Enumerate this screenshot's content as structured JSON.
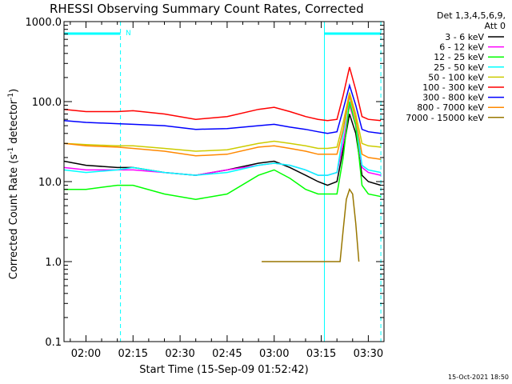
{
  "chart_data": {
    "type": "line",
    "title": "RHESSI Observing Summary Count Rates, Corrected",
    "xlabel": "Start Time (15-Sep-09 01:52:42)",
    "ylabel_parts": [
      "Corrected Count Rate (s",
      "-1",
      " detector",
      "-1",
      ")"
    ],
    "y_scale": "log",
    "ylim": [
      0.1,
      1000
    ],
    "y_ticks": [
      "0.1",
      "1.0",
      "10.0",
      "100.0",
      "1000.0"
    ],
    "xlim_minutes": [
      -7,
      95
    ],
    "x_ticks": [
      {
        "label": "02:00",
        "minute": 0
      },
      {
        "label": "02:15",
        "minute": 15
      },
      {
        "label": "02:30",
        "minute": 30
      },
      {
        "label": "02:45",
        "minute": 45
      },
      {
        "label": "03:00",
        "minute": 60
      },
      {
        "label": "03:15",
        "minute": 75
      },
      {
        "label": "03:30",
        "minute": 90
      }
    ],
    "detector_info": [
      "Det 1,3,4,5,6,9,",
      "Att 0"
    ],
    "annotation_N": "N",
    "night_intervals_minutes": [
      [
        -7,
        11
      ],
      [
        76,
        94
      ]
    ],
    "series": [
      {
        "name": "3 - 6 keV",
        "color": "#000000",
        "x": [
          -7,
          0,
          10,
          15,
          25,
          35,
          45,
          55,
          60,
          65,
          70,
          74,
          77,
          80,
          82,
          84,
          86,
          88,
          90,
          94
        ],
        "y": [
          18,
          16,
          15,
          15,
          13,
          12,
          14,
          17,
          18,
          15,
          12,
          10,
          9,
          10,
          25,
          70,
          40,
          12,
          10,
          9
        ]
      },
      {
        "name": "6 - 12 keV",
        "color": "#ff00ff",
        "x": [
          -7,
          0,
          10,
          15,
          25,
          35,
          45,
          55,
          60,
          65,
          70,
          74,
          77,
          80,
          82,
          84,
          86,
          88,
          90,
          94
        ],
        "y": [
          15,
          14,
          14,
          14,
          13,
          12,
          14,
          16,
          17,
          16,
          14,
          12,
          12,
          13,
          30,
          90,
          50,
          15,
          13,
          12
        ]
      },
      {
        "name": "12 - 25 keV",
        "color": "#00ff00",
        "x": [
          -7,
          0,
          10,
          15,
          25,
          35,
          45,
          55,
          60,
          65,
          70,
          74,
          77,
          80,
          82,
          84,
          86,
          88,
          90,
          94
        ],
        "y": [
          8,
          8,
          9,
          9,
          7,
          6,
          7,
          12,
          14,
          11,
          8,
          7,
          7,
          7,
          20,
          100,
          50,
          9,
          7,
          6.5
        ]
      },
      {
        "name": "25 - 50 keV",
        "color": "#00ffff",
        "x": [
          -7,
          0,
          10,
          15,
          25,
          35,
          45,
          55,
          60,
          65,
          70,
          74,
          77,
          80,
          82,
          84,
          86,
          88,
          90,
          94
        ],
        "y": [
          14,
          13,
          14,
          15,
          13,
          12,
          13,
          16,
          17,
          16,
          14,
          12,
          12,
          13,
          40,
          115,
          60,
          16,
          14,
          13
        ]
      },
      {
        "name": "50 - 100 keV",
        "color": "#cccc00",
        "x": [
          -7,
          0,
          10,
          15,
          25,
          35,
          45,
          55,
          60,
          65,
          70,
          74,
          77,
          80,
          82,
          84,
          86,
          88,
          90,
          94
        ],
        "y": [
          30,
          29,
          28,
          28,
          26,
          24,
          25,
          30,
          32,
          30,
          28,
          26,
          26,
          27,
          55,
          130,
          70,
          30,
          28,
          27
        ]
      },
      {
        "name": "100 - 300 keV",
        "color": "#ff0000",
        "x": [
          -7,
          0,
          10,
          15,
          25,
          35,
          45,
          55,
          60,
          65,
          70,
          74,
          77,
          80,
          82,
          84,
          86,
          88,
          90,
          94
        ],
        "y": [
          80,
          75,
          75,
          77,
          70,
          60,
          65,
          80,
          85,
          75,
          65,
          60,
          58,
          60,
          120,
          270,
          140,
          65,
          60,
          58
        ]
      },
      {
        "name": "300 - 800 keV",
        "color": "#0000ff",
        "x": [
          -7,
          0,
          10,
          15,
          25,
          35,
          45,
          55,
          60,
          65,
          70,
          74,
          77,
          80,
          82,
          84,
          86,
          88,
          90,
          94
        ],
        "y": [
          58,
          55,
          53,
          52,
          50,
          45,
          46,
          50,
          52,
          48,
          45,
          42,
          40,
          42,
          80,
          160,
          90,
          45,
          42,
          40
        ]
      },
      {
        "name": "800 - 7000 keV",
        "color": "#ff8800",
        "x": [
          -7,
          0,
          10,
          15,
          25,
          35,
          45,
          55,
          60,
          65,
          70,
          74,
          77,
          80,
          82,
          84,
          86,
          88,
          90,
          94
        ],
        "y": [
          30,
          28,
          27,
          26,
          24,
          21,
          22,
          27,
          28,
          26,
          24,
          22,
          22,
          22,
          45,
          120,
          60,
          22,
          20,
          19
        ]
      },
      {
        "name": "7000 - 15000 keV",
        "color": "#997700",
        "x": [
          56,
          58,
          60,
          62,
          64,
          66,
          67,
          81,
          82,
          83,
          84,
          85,
          86,
          87
        ],
        "y": [
          1.0,
          1.0,
          1.0,
          1.0,
          1.0,
          1.0,
          1.0,
          1.0,
          2.5,
          6,
          8,
          7,
          3,
          1.0
        ]
      }
    ]
  },
  "footer": {
    "timestamp": "15-Oct-2021 18:50"
  }
}
